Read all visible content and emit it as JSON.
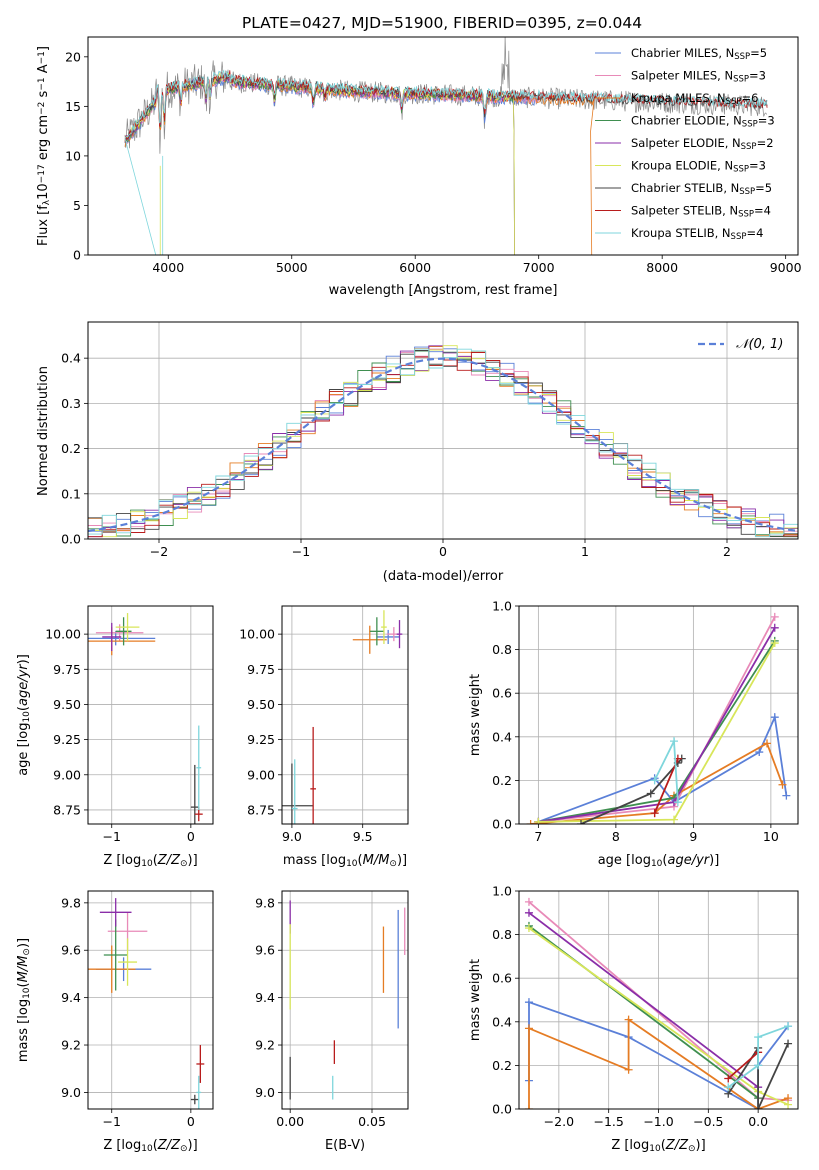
{
  "figure": {
    "title": "PLATE=0427, MJD=51900, FIBERID=0395, z=0.044",
    "colors": {
      "Chabrier MILES": "#5b80d8",
      "Salpeter MILES": "#e88ab8",
      "Kroupa MILES": "#e57c24",
      "Chabrier ELODIE": "#3f8f50",
      "Salpeter ELODIE": "#8a2ea8",
      "Kroupa ELODIE": "#d8e65a",
      "Chabrier STELIB": "#444444",
      "Salpeter STELIB": "#b81c1c",
      "Kroupa STELIB": "#7fd6dc",
      "data": "#888888",
      "normal": "#5b80d8"
    }
  },
  "chart_data": [
    {
      "id": "spectrum",
      "type": "line",
      "title": "PLATE=0427, MJD=51900, FIBERID=0395, z=0.044",
      "xlabel": "wavelength [Angstrom, rest frame]",
      "ylabel": "Flux [f_λ 10^-17 erg cm^-2 s^-1 A^-1]",
      "xlim": [
        3350,
        9100
      ],
      "ylim": [
        0,
        22
      ],
      "xticks": [
        4000,
        5000,
        6000,
        7000,
        8000,
        9000
      ],
      "yticks": [
        0,
        5,
        10,
        15,
        20
      ],
      "legend_position": "top-right",
      "grid": false,
      "series": [
        {
          "name": "Chabrier MILES",
          "nssp": "5",
          "range": [
            3650,
            7000
          ]
        },
        {
          "name": "Salpeter MILES",
          "nssp": "3",
          "range": [
            3650,
            7000
          ]
        },
        {
          "name": "Kroupa MILES",
          "nssp": "6",
          "range": [
            3650,
            7450
          ]
        },
        {
          "name": "Chabrier ELODIE",
          "nssp": "3",
          "range": [
            3650,
            6800
          ]
        },
        {
          "name": "Salpeter ELODIE",
          "nssp": "2",
          "range": [
            3650,
            6800
          ]
        },
        {
          "name": "Kroupa ELODIE",
          "nssp": "3",
          "range": [
            3650,
            6800
          ]
        },
        {
          "name": "Chabrier STELIB",
          "nssp": "5",
          "range": [
            3650,
            8850
          ]
        },
        {
          "name": "Salpeter STELIB",
          "nssp": "4",
          "range": [
            3650,
            8850
          ]
        },
        {
          "name": "Kroupa STELIB",
          "nssp": "4",
          "range": [
            3650,
            8850
          ]
        }
      ]
    },
    {
      "id": "residuals",
      "type": "area",
      "xlabel": "(data-model)/error",
      "ylabel": "Normed distribution",
      "xlim": [
        -2.5,
        2.5
      ],
      "ylim": [
        0,
        0.48
      ],
      "xticks": [
        -2,
        -1,
        0,
        1,
        2
      ],
      "yticks": [
        0.0,
        0.1,
        0.2,
        0.3,
        0.4
      ],
      "grid": true,
      "legend": "𝒩(0, 1)",
      "legend_position": "top-right",
      "reference_curve": "normal, mean 0, sigma 1"
    },
    {
      "id": "age-vs-Z",
      "type": "scatter",
      "xlabel": "Z [log10(Z/Z⊙)]",
      "ylabel": "age  [log10(age/yr)]",
      "xlim": [
        -1.3,
        0.28
      ],
      "ylim": [
        8.65,
        10.2
      ],
      "xticks": [
        -1,
        0
      ],
      "yticks": [
        8.75,
        9.0,
        9.25,
        9.5,
        9.75,
        10.0
      ],
      "grid": true,
      "points": [
        {
          "series": "Chabrier MILES",
          "x": -0.95,
          "y": 9.97,
          "xerr": 0.5,
          "yerr": 0.05
        },
        {
          "series": "Salpeter MILES",
          "x": -0.9,
          "y": 10.01,
          "xerr": 0.3,
          "yerr": 0.06
        },
        {
          "series": "Kroupa MILES",
          "x": -1.0,
          "y": 9.95,
          "xerr": 0.55,
          "yerr": 0.1
        },
        {
          "series": "Chabrier ELODIE",
          "x": -0.85,
          "y": 10.02,
          "xerr": 0.1,
          "yerr": 0.1
        },
        {
          "series": "Salpeter ELODIE",
          "x": -1.0,
          "y": 9.98,
          "xerr": 0.12,
          "yerr": 0.1
        },
        {
          "series": "Kroupa ELODIE",
          "x": -0.8,
          "y": 10.05,
          "xerr": 0.15,
          "yerr": 0.1
        },
        {
          "series": "Chabrier STELIB",
          "x": 0.05,
          "y": 8.77,
          "xerr": 0.05,
          "yerr": 0.3
        },
        {
          "series": "Salpeter STELIB",
          "x": 0.1,
          "y": 8.72,
          "xerr": 0.05,
          "yerr": 0.05
        },
        {
          "series": "Kroupa STELIB",
          "x": 0.1,
          "y": 9.05,
          "xerr": 0.03,
          "yerr": 0.3
        }
      ]
    },
    {
      "id": "age-vs-mass",
      "type": "scatter",
      "xlabel": "mass [log10(M/M⊙)]",
      "ylabel": "",
      "xlim": [
        8.93,
        9.82
      ],
      "ylim": [
        8.65,
        10.2
      ],
      "xticks": [
        9.0,
        9.5
      ],
      "yticks": [
        8.75,
        9.0,
        9.25,
        9.5,
        9.75,
        10.0
      ],
      "grid": true,
      "points": [
        {
          "series": "Chabrier MILES",
          "x": 9.68,
          "y": 9.98,
          "xerr": 0.08,
          "yerr": 0.05
        },
        {
          "series": "Salpeter MILES",
          "x": 9.72,
          "y": 10.0,
          "xerr": 0.05,
          "yerr": 0.05
        },
        {
          "series": "Kroupa MILES",
          "x": 9.55,
          "y": 9.96,
          "xerr": 0.12,
          "yerr": 0.1
        },
        {
          "series": "Chabrier ELODIE",
          "x": 9.6,
          "y": 10.02,
          "xerr": 0.05,
          "yerr": 0.1
        },
        {
          "series": "Salpeter ELODIE",
          "x": 9.76,
          "y": 10.0,
          "xerr": 0.02,
          "yerr": 0.1
        },
        {
          "series": "Kroupa ELODIE",
          "x": 9.65,
          "y": 10.05,
          "xerr": 0.02,
          "yerr": 0.12
        },
        {
          "series": "Chabrier STELIB",
          "x": 9.0,
          "y": 8.78,
          "xerr": 0.15,
          "yerr": 0.3
        },
        {
          "series": "Salpeter STELIB",
          "x": 9.15,
          "y": 8.9,
          "xerr": 0.02,
          "yerr": 0.44
        },
        {
          "series": "Kroupa STELIB",
          "x": 9.02,
          "y": 8.76,
          "xerr": 0.02,
          "yerr": 0.35
        }
      ]
    },
    {
      "id": "weight-vs-age",
      "type": "line",
      "xlabel": "age  [log10(age/yr)]",
      "ylabel": "mass weight",
      "xlim": [
        6.75,
        10.35
      ],
      "ylim": [
        0,
        1.0
      ],
      "xticks": [
        7,
        8,
        9,
        10
      ],
      "yticks": [
        0.0,
        0.2,
        0.4,
        0.6,
        0.8,
        1.0
      ],
      "grid": true,
      "series": [
        {
          "name": "Chabrier MILES",
          "x": [
            7.0,
            8.5,
            8.75,
            9.85,
            10.05,
            10.2
          ],
          "y": [
            0.01,
            0.21,
            0.1,
            0.33,
            0.49,
            0.13
          ]
        },
        {
          "name": "Salpeter MILES",
          "x": [
            7.0,
            8.75,
            10.05
          ],
          "y": [
            0.01,
            0.08,
            0.95
          ]
        },
        {
          "name": "Kroupa MILES",
          "x": [
            6.9,
            8.5,
            8.75,
            9.95,
            10.15
          ],
          "y": [
            0.0,
            0.05,
            0.13,
            0.37,
            0.18
          ]
        },
        {
          "name": "Chabrier ELODIE",
          "x": [
            7.0,
            8.75,
            10.05
          ],
          "y": [
            0.01,
            0.12,
            0.84
          ]
        },
        {
          "name": "Salpeter ELODIE",
          "x": [
            7.0,
            8.75,
            10.05
          ],
          "y": [
            0.01,
            0.1,
            0.9
          ]
        },
        {
          "name": "Kroupa ELODIE",
          "x": [
            7.0,
            8.75,
            10.05
          ],
          "y": [
            0.01,
            0.02,
            0.83
          ]
        },
        {
          "name": "Chabrier STELIB",
          "x": [
            7.55,
            8.45,
            8.8,
            8.85
          ],
          "y": [
            0.0,
            0.14,
            0.28,
            0.3
          ]
        },
        {
          "name": "Salpeter STELIB",
          "x": [
            8.5,
            8.8
          ],
          "y": [
            0.05,
            0.3
          ]
        },
        {
          "name": "Kroupa STELIB",
          "x": [
            8.5,
            8.75,
            8.8
          ],
          "y": [
            0.2,
            0.38,
            0.1
          ]
        }
      ]
    },
    {
      "id": "mass-vs-Z",
      "type": "scatter",
      "xlabel": "Z [log10(Z/Z⊙)]",
      "ylabel": "mass [log10(M/M⊙)]",
      "xlim": [
        -1.3,
        0.28
      ],
      "ylim": [
        8.93,
        9.85
      ],
      "xticks": [
        -1,
        0
      ],
      "yticks": [
        9.0,
        9.2,
        9.4,
        9.6,
        9.8
      ],
      "grid": true,
      "points": [
        {
          "series": "Chabrier MILES",
          "x": -0.85,
          "y": 9.52,
          "xerr": 0.35,
          "yerr": 0.05
        },
        {
          "series": "Salpeter MILES",
          "x": -0.8,
          "y": 9.68,
          "xerr": 0.25,
          "yerr": 0.08
        },
        {
          "series": "Kroupa MILES",
          "x": -1.0,
          "y": 9.52,
          "xerr": 0.3,
          "yerr": 0.1
        },
        {
          "series": "Chabrier ELODIE",
          "x": -0.95,
          "y": 9.58,
          "xerr": 0.15,
          "yerr": 0.15
        },
        {
          "series": "Salpeter ELODIE",
          "x": -0.95,
          "y": 9.76,
          "xerr": 0.2,
          "yerr": 0.06
        },
        {
          "series": "Kroupa ELODIE",
          "x": -0.8,
          "y": 9.55,
          "xerr": 0.12,
          "yerr": 0.1
        },
        {
          "series": "Chabrier STELIB",
          "x": 0.05,
          "y": 8.97,
          "xerr": 0.05,
          "yerr": 0.02
        },
        {
          "series": "Salpeter STELIB",
          "x": 0.12,
          "y": 9.12,
          "xerr": 0.05,
          "yerr": 0.08
        },
        {
          "series": "Kroupa STELIB",
          "x": 0.1,
          "y": 9.0,
          "xerr": 0.03,
          "yerr": 0.07
        }
      ]
    },
    {
      "id": "mass-vs-ebv",
      "type": "scatter",
      "xlabel": "E(B-V)",
      "ylabel": "",
      "xlim": [
        -0.005,
        0.072
      ],
      "ylim": [
        8.93,
        9.85
      ],
      "xticks": [
        0.0,
        0.05
      ],
      "yticks": [
        9.0,
        9.2,
        9.4,
        9.6,
        9.8
      ],
      "grid": true,
      "points": [
        {
          "series": "Chabrier MILES",
          "x": 0.066,
          "y": 9.52,
          "xerr": 0.0,
          "yerr": 0.25
        },
        {
          "series": "Salpeter MILES",
          "x": 0.07,
          "y": 9.68,
          "xerr": 0.0,
          "yerr": 0.1
        },
        {
          "series": "Kroupa MILES",
          "x": 0.057,
          "y": 9.56,
          "xerr": 0.0,
          "yerr": 0.14
        },
        {
          "series": "Salpeter ELODIE",
          "x": 0.0,
          "y": 9.74,
          "xerr": 0.0,
          "yerr": 0.07
        },
        {
          "series": "Kroupa ELODIE",
          "x": 0.0,
          "y": 9.53,
          "xerr": 0.0,
          "yerr": 0.18
        },
        {
          "series": "Chabrier STELIB",
          "x": 0.0,
          "y": 9.06,
          "xerr": 0.0,
          "yerr": 0.09
        },
        {
          "series": "Salpeter STELIB",
          "x": 0.027,
          "y": 9.17,
          "xerr": 0.0,
          "yerr": 0.05
        },
        {
          "series": "Kroupa STELIB",
          "x": 0.026,
          "y": 9.02,
          "xerr": 0.0,
          "yerr": 0.05
        }
      ]
    },
    {
      "id": "weight-vs-Z",
      "type": "line",
      "xlabel": "Z [log10(Z/Z⊙)]",
      "ylabel": "mass weight",
      "xlim": [
        -2.4,
        0.4
      ],
      "ylim": [
        0,
        1.0
      ],
      "xticks": [
        -2.0,
        -1.5,
        -1.0,
        -0.5,
        0.0
      ],
      "yticks": [
        0.0,
        0.2,
        0.4,
        0.6,
        0.8,
        1.0
      ],
      "grid": true,
      "series": [
        {
          "name": "Chabrier MILES",
          "x": [
            -2.3,
            -2.3,
            -1.3,
            0.0,
            0.0,
            0.3
          ],
          "y": [
            0.13,
            0.49,
            0.33,
            0.0,
            0.2,
            0.38
          ]
        },
        {
          "name": "Salpeter MILES",
          "x": [
            -2.3,
            0.0,
            0.3
          ],
          "y": [
            0.95,
            0.05,
            0.04
          ]
        },
        {
          "name": "Kroupa MILES",
          "x": [
            -2.3,
            -2.3,
            -1.3,
            -1.3,
            0.0,
            0.3
          ],
          "y": [
            0.0,
            0.37,
            0.18,
            0.41,
            0.0,
            0.05
          ]
        },
        {
          "name": "Chabrier ELODIE",
          "x": [
            -2.3,
            0.0
          ],
          "y": [
            0.84,
            0.05
          ]
        },
        {
          "name": "Salpeter ELODIE",
          "x": [
            -2.3,
            0.0
          ],
          "y": [
            0.9,
            0.1
          ]
        },
        {
          "name": "Kroupa ELODIE",
          "x": [
            -2.3,
            0.0,
            0.3
          ],
          "y": [
            0.83,
            0.08,
            0.02
          ]
        },
        {
          "name": "Chabrier STELIB",
          "x": [
            -0.3,
            0.0,
            0.0,
            0.3
          ],
          "y": [
            0.07,
            0.28,
            0.0,
            0.3
          ]
        },
        {
          "name": "Salpeter STELIB",
          "x": [
            -0.3,
            0.0
          ],
          "y": [
            0.14,
            0.26
          ]
        },
        {
          "name": "Kroupa STELIB",
          "x": [
            -0.3,
            0.0,
            0.0,
            0.3
          ],
          "y": [
            0.1,
            0.2,
            0.33,
            0.38
          ]
        }
      ]
    }
  ]
}
